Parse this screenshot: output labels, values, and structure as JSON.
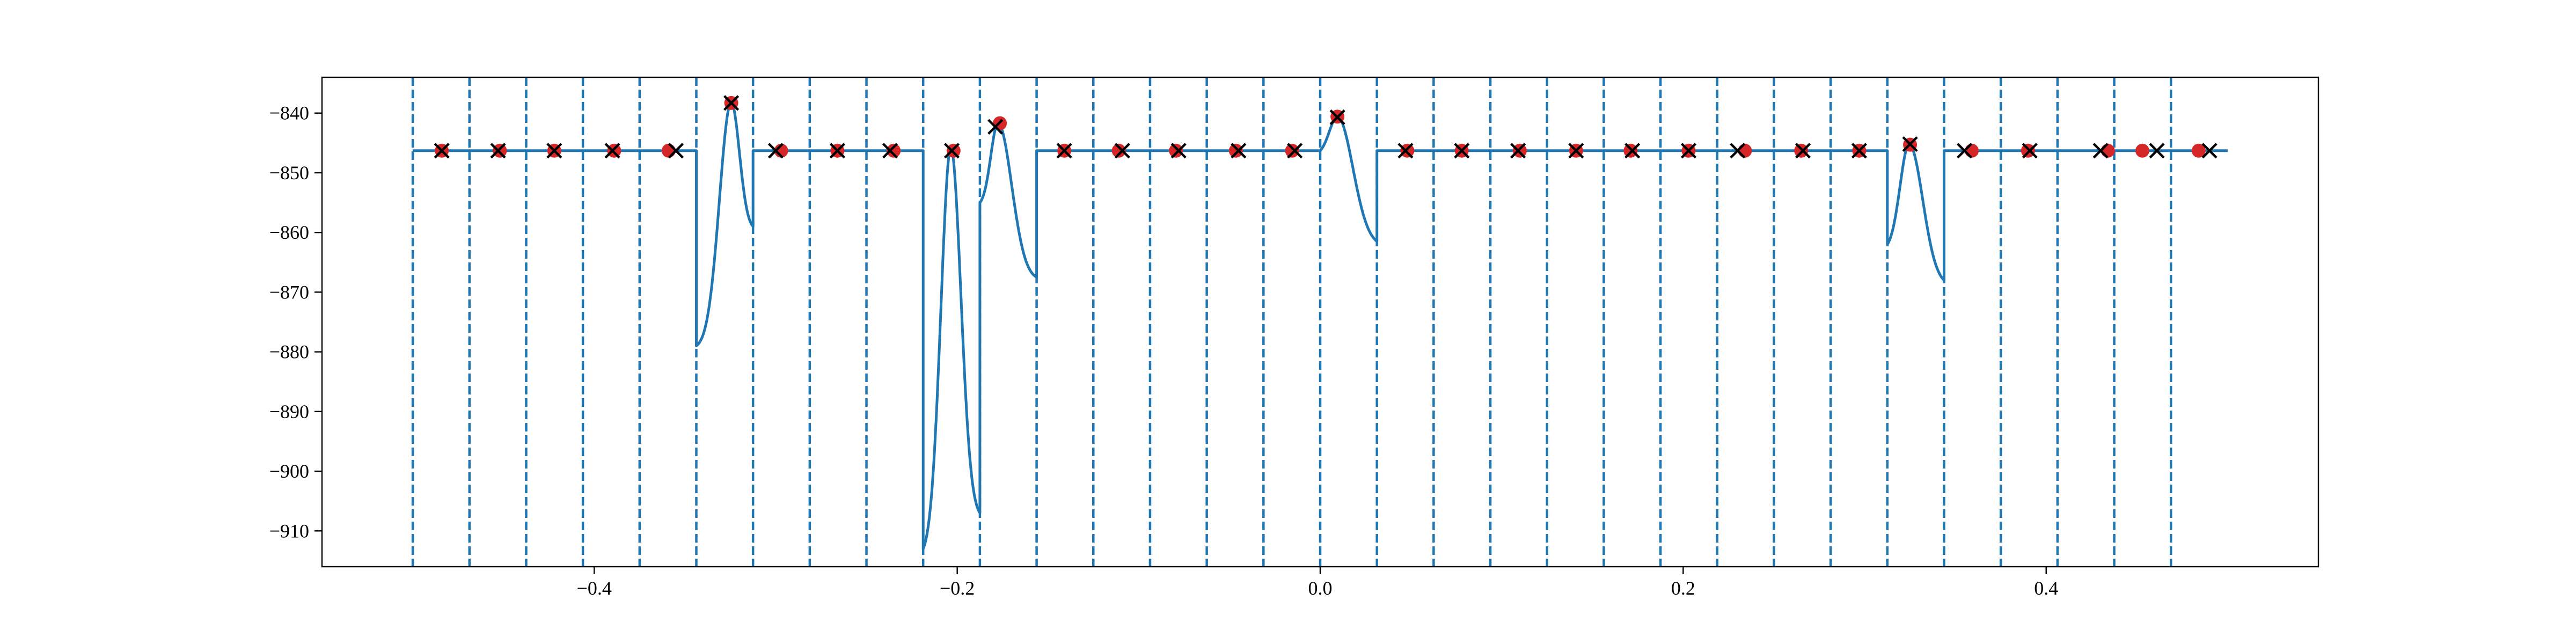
{
  "chart_data": {
    "type": "line",
    "title": "",
    "xlabel": "",
    "ylabel": "",
    "xlim": [
      -0.55,
      0.55
    ],
    "ylim": [
      -916,
      -834
    ],
    "grid": false,
    "legend": "none",
    "x_ticks": [
      {
        "value": -0.4,
        "label": "−0.4"
      },
      {
        "value": -0.2,
        "label": "−0.2"
      },
      {
        "value": 0.0,
        "label": "0.0"
      },
      {
        "value": 0.2,
        "label": "0.2"
      },
      {
        "value": 0.4,
        "label": "0.4"
      }
    ],
    "y_ticks": [
      {
        "value": -840,
        "label": "−840"
      },
      {
        "value": -850,
        "label": "−850"
      },
      {
        "value": -860,
        "label": "−860"
      },
      {
        "value": -870,
        "label": "−870"
      },
      {
        "value": -880,
        "label": "−880"
      },
      {
        "value": -890,
        "label": "−890"
      },
      {
        "value": -900,
        "label": "−900"
      },
      {
        "value": -910,
        "label": "−910"
      }
    ],
    "colors": {
      "line": "#1f77b4",
      "circle": "#d62728",
      "cross": "#000000"
    },
    "boundaries": [
      -0.5,
      -0.46875,
      -0.4375,
      -0.40625,
      -0.375,
      -0.34375,
      -0.3125,
      -0.28125,
      -0.25,
      -0.21875,
      -0.1875,
      -0.15625,
      -0.125,
      -0.09375,
      -0.0625,
      -0.03125,
      0.0,
      0.03125,
      0.0625,
      0.09375,
      0.125,
      0.15625,
      0.1875,
      0.21875,
      0.25,
      0.28125,
      0.3125,
      0.34375,
      0.375,
      0.40625,
      0.4375,
      0.46875
    ],
    "baseline": -846.3,
    "series": [
      {
        "kind": "flat",
        "x0": -0.5,
        "x1": -0.34375
      },
      {
        "kind": "bump",
        "x0": -0.34375,
        "x1": -0.3125,
        "peak_x": -0.3245,
        "peak_y": -838.2,
        "start_y": -879,
        "end_y": -859,
        "ws": 0.0065,
        "we": 0.0045
      },
      {
        "kind": "flat",
        "x0": -0.3125,
        "x1": -0.21875
      },
      {
        "kind": "bump",
        "x0": -0.21875,
        "x1": -0.1875,
        "peak_x": -0.2035,
        "peak_y": -845.8,
        "start_y": -913,
        "end_y": -907,
        "ws": 0.0055,
        "we": 0.0055
      },
      {
        "kind": "bump",
        "x0": -0.1875,
        "x1": -0.15625,
        "peak_x": -0.1775,
        "peak_y": -841.7,
        "start_y": -855,
        "end_y": -867.5,
        "ws": 0.004,
        "we": 0.0075
      },
      {
        "kind": "flat",
        "x0": -0.15625,
        "x1": 0.0
      },
      {
        "kind": "bump",
        "x0": 0.0,
        "x1": 0.03125,
        "peak_x": 0.0095,
        "peak_y": -840.6,
        "start_y": -846.3,
        "end_y": -861.5,
        "ws": 0.0045,
        "we": 0.0085
      },
      {
        "kind": "flat",
        "x0": 0.03125,
        "x1": 0.3125
      },
      {
        "kind": "bump",
        "x0": 0.3125,
        "x1": 0.34375,
        "peak_x": 0.3245,
        "peak_y": -845.2,
        "start_y": -862,
        "end_y": -868,
        "ws": 0.005,
        "we": 0.0075
      },
      {
        "kind": "flat",
        "x0": 0.34375,
        "x1": 0.5
      }
    ],
    "circles": [
      {
        "x": -0.484,
        "y": -846.3
      },
      {
        "x": -0.452,
        "y": -846.3
      },
      {
        "x": -0.422,
        "y": -846.3
      },
      {
        "x": -0.389,
        "y": -846.3
      },
      {
        "x": -0.359,
        "y": -846.3
      },
      {
        "x": -0.3245,
        "y": -838.3
      },
      {
        "x": -0.297,
        "y": -846.3
      },
      {
        "x": -0.266,
        "y": -846.3
      },
      {
        "x": -0.235,
        "y": -846.3
      },
      {
        "x": -0.202,
        "y": -846.3
      },
      {
        "x": -0.1765,
        "y": -841.7
      },
      {
        "x": -0.141,
        "y": -846.3
      },
      {
        "x": -0.111,
        "y": -846.3
      },
      {
        "x": -0.0795,
        "y": -846.3
      },
      {
        "x": -0.0465,
        "y": -846.3
      },
      {
        "x": -0.0155,
        "y": -846.3
      },
      {
        "x": 0.0095,
        "y": -840.6
      },
      {
        "x": 0.048,
        "y": -846.3
      },
      {
        "x": 0.078,
        "y": -846.3
      },
      {
        "x": 0.11,
        "y": -846.3
      },
      {
        "x": 0.141,
        "y": -846.3
      },
      {
        "x": 0.171,
        "y": -846.3
      },
      {
        "x": 0.203,
        "y": -846.3
      },
      {
        "x": 0.234,
        "y": -846.3
      },
      {
        "x": 0.265,
        "y": -846.3
      },
      {
        "x": 0.297,
        "y": -846.3
      },
      {
        "x": 0.325,
        "y": -845.3
      },
      {
        "x": 0.359,
        "y": -846.3
      },
      {
        "x": 0.39,
        "y": -846.3
      },
      {
        "x": 0.434,
        "y": -846.3
      },
      {
        "x": 0.453,
        "y": -846.3
      },
      {
        "x": 0.484,
        "y": -846.3
      }
    ],
    "crosses": [
      {
        "x": -0.484,
        "y": -846.3
      },
      {
        "x": -0.453,
        "y": -846.3
      },
      {
        "x": -0.422,
        "y": -846.3
      },
      {
        "x": -0.39,
        "y": -846.3
      },
      {
        "x": -0.355,
        "y": -846.3
      },
      {
        "x": -0.3245,
        "y": -838.3
      },
      {
        "x": -0.3,
        "y": -846.3
      },
      {
        "x": -0.266,
        "y": -846.3
      },
      {
        "x": -0.237,
        "y": -846.3
      },
      {
        "x": -0.203,
        "y": -846.3
      },
      {
        "x": -0.179,
        "y": -842.3
      },
      {
        "x": -0.141,
        "y": -846.3
      },
      {
        "x": -0.109,
        "y": -846.3
      },
      {
        "x": -0.078,
        "y": -846.3
      },
      {
        "x": -0.045,
        "y": -846.3
      },
      {
        "x": -0.014,
        "y": -846.3
      },
      {
        "x": 0.0095,
        "y": -840.7
      },
      {
        "x": 0.047,
        "y": -846.3
      },
      {
        "x": 0.078,
        "y": -846.3
      },
      {
        "x": 0.109,
        "y": -846.3
      },
      {
        "x": 0.141,
        "y": -846.3
      },
      {
        "x": 0.172,
        "y": -846.3
      },
      {
        "x": 0.203,
        "y": -846.3
      },
      {
        "x": 0.23,
        "y": -846.3
      },
      {
        "x": 0.266,
        "y": -846.3
      },
      {
        "x": 0.297,
        "y": -846.3
      },
      {
        "x": 0.325,
        "y": -845.2
      },
      {
        "x": 0.355,
        "y": -846.3
      },
      {
        "x": 0.391,
        "y": -846.3
      },
      {
        "x": 0.43,
        "y": -846.3
      },
      {
        "x": 0.461,
        "y": -846.3
      },
      {
        "x": 0.49,
        "y": -846.3
      }
    ]
  }
}
